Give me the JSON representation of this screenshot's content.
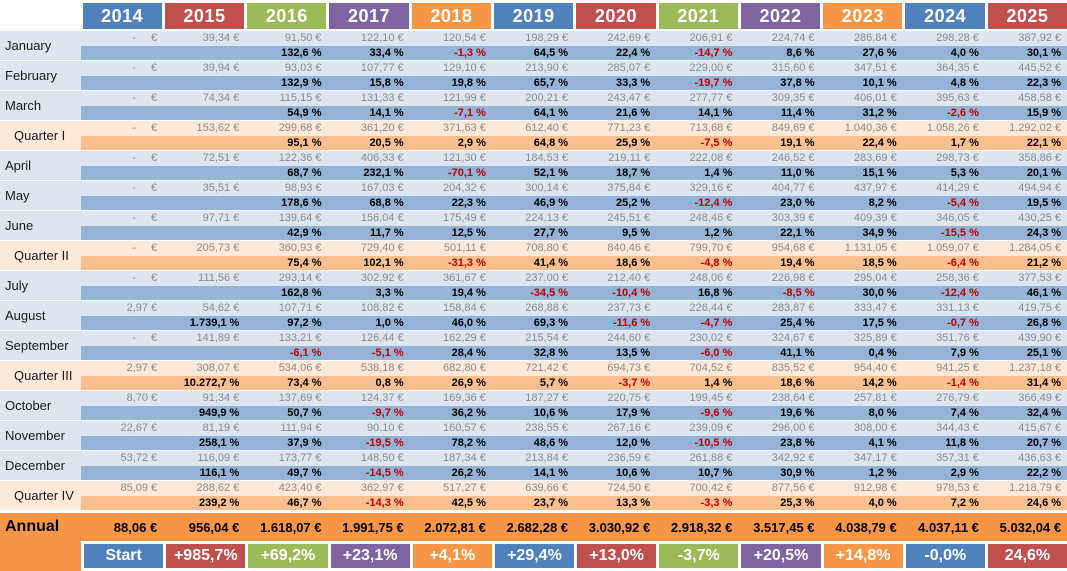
{
  "styles": {
    "month_value_bg": "#DCE6F1",
    "month_pct_bg": "#95B3D7",
    "quarter_value_bg": "#FDE9D9",
    "quarter_pct_bg": "#FABF8F",
    "annual_bg": "#F79646",
    "negative_text": "#C00000",
    "value_text": "#8a8a8a",
    "year_blue": "#4F81BD",
    "year_red": "#C0504D",
    "year_green": "#9BBB59",
    "year_purple": "#8064A2",
    "year_orange": "#F79646"
  },
  "chart_data": {
    "type": "table",
    "title": "",
    "columns": [
      "2014",
      "2015",
      "2016",
      "2017",
      "2018",
      "2019",
      "2020",
      "2021",
      "2022",
      "2023",
      "2024",
      "2025"
    ],
    "column_colors": [
      "#4F81BD",
      "#C0504D",
      "#9BBB59",
      "#8064A2",
      "#F79646",
      "#4F81BD",
      "#C0504D",
      "#9BBB59",
      "#8064A2",
      "#F79646",
      "#4F81BD",
      "#C0504D"
    ],
    "rows": [
      {
        "label": "January",
        "type": "month",
        "values": [
          "- €",
          "39,34 €",
          "91,50 €",
          "122,10 €",
          "120,54 €",
          "198,29 €",
          "242,69 €",
          "206,91 €",
          "224,74 €",
          "286,84 €",
          "298,28 €",
          "387,92 €"
        ],
        "pcts": [
          "",
          "",
          "132,6 %",
          "33,4 %",
          "-1,3 %",
          "64,5 %",
          "22,4 %",
          "-14,7 %",
          "8,6 %",
          "27,6 %",
          "4,0 %",
          "30,1 %"
        ]
      },
      {
        "label": "February",
        "type": "month",
        "values": [
          "- €",
          "39,94 €",
          "93,03 €",
          "107,77 €",
          "129,10 €",
          "213,90 €",
          "285,07 €",
          "229,00 €",
          "315,60 €",
          "347,51 €",
          "364,35 €",
          "445,52 €"
        ],
        "pcts": [
          "",
          "",
          "132,9 %",
          "15,8 %",
          "19,8 %",
          "65,7 %",
          "33,3 %",
          "-19,7 %",
          "37,8 %",
          "10,1 %",
          "4,8 %",
          "22,3 %"
        ]
      },
      {
        "label": "March",
        "type": "month",
        "values": [
          "- €",
          "74,34 €",
          "115,15 €",
          "131,33 €",
          "121,99 €",
          "200,21 €",
          "243,47 €",
          "277,77 €",
          "309,35 €",
          "406,01 €",
          "395,63 €",
          "458,58 €"
        ],
        "pcts": [
          "",
          "",
          "54,9 %",
          "14,1 %",
          "-7,1 %",
          "64,1 %",
          "21,6 %",
          "14,1 %",
          "11,4 %",
          "31,2 %",
          "-2,6 %",
          "15,9 %"
        ]
      },
      {
        "label": "Quarter I",
        "type": "quarter",
        "values": [
          "- €",
          "153,62 €",
          "299,68 €",
          "361,20 €",
          "371,63 €",
          "612,40 €",
          "771,23 €",
          "713,68 €",
          "849,69 €",
          "1.040,36 €",
          "1.058,26 €",
          "1.292,02 €"
        ],
        "pcts": [
          "",
          "",
          "95,1 %",
          "20,5 %",
          "2,9 %",
          "64,8 %",
          "25,9 %",
          "-7,5 %",
          "19,1 %",
          "22,4 %",
          "1,7 %",
          "22,1 %"
        ]
      },
      {
        "label": "April",
        "type": "month",
        "values": [
          "- €",
          "72,51 €",
          "122,36 €",
          "406,33 €",
          "121,30 €",
          "184,53 €",
          "219,11 €",
          "222,08 €",
          "246,52 €",
          "283,69 €",
          "298,73 €",
          "358,86 €"
        ],
        "pcts": [
          "",
          "",
          "68,7 %",
          "232,1 %",
          "-70,1 %",
          "52,1 %",
          "18,7 %",
          "1,4 %",
          "11,0 %",
          "15,1 %",
          "5,3 %",
          "20,1 %"
        ]
      },
      {
        "label": "May",
        "type": "month",
        "values": [
          "- €",
          "35,51 €",
          "98,93 €",
          "167,03 €",
          "204,32 €",
          "300,14 €",
          "375,84 €",
          "329,16 €",
          "404,77 €",
          "437,97 €",
          "414,29 €",
          "494,94 €"
        ],
        "pcts": [
          "",
          "",
          "178,6 %",
          "68,8 %",
          "22,3 %",
          "46,9 %",
          "25,2 %",
          "-12,4 %",
          "23,0 %",
          "8,2 %",
          "-5,4 %",
          "19,5 %"
        ]
      },
      {
        "label": "June",
        "type": "month",
        "values": [
          "- €",
          "97,71 €",
          "139,64 €",
          "156,04 €",
          "175,49 €",
          "224,13 €",
          "245,51 €",
          "248,46 €",
          "303,39 €",
          "409,39 €",
          "346,05 €",
          "430,25 €"
        ],
        "pcts": [
          "",
          "",
          "42,9 %",
          "11,7 %",
          "12,5 %",
          "27,7 %",
          "9,5 %",
          "1,2 %",
          "22,1 %",
          "34,9 %",
          "-15,5 %",
          "24,3 %"
        ]
      },
      {
        "label": "Quarter II",
        "type": "quarter",
        "values": [
          "- €",
          "205,73 €",
          "360,93 €",
          "729,40 €",
          "501,11 €",
          "708,80 €",
          "840,46 €",
          "799,70 €",
          "954,68 €",
          "1.131,05 €",
          "1.059,07 €",
          "1.284,05 €"
        ],
        "pcts": [
          "",
          "",
          "75,4 %",
          "102,1 %",
          "-31,3 %",
          "41,4 %",
          "18,6 %",
          "-4,8 %",
          "19,4 %",
          "18,5 %",
          "-6,4 %",
          "21,2 %"
        ]
      },
      {
        "label": "July",
        "type": "month",
        "values": [
          "- €",
          "111,56 €",
          "293,14 €",
          "302,92 €",
          "361,67 €",
          "237,00 €",
          "212,40 €",
          "248,06 €",
          "226,98 €",
          "295,04 €",
          "258,36 €",
          "377,53 €"
        ],
        "pcts": [
          "",
          "",
          "162,8 %",
          "3,3 %",
          "19,4 %",
          "-34,5 %",
          "-10,4 %",
          "16,8 %",
          "-8,5 %",
          "30,0 %",
          "-12,4 %",
          "46,1 %"
        ]
      },
      {
        "label": "August",
        "type": "month",
        "values": [
          "2,97 €",
          "54,62 €",
          "107,71 €",
          "108,82 €",
          "158,84 €",
          "268,88 €",
          "237,73 €",
          "226,44 €",
          "283,87 €",
          "333,47 €",
          "331,13 €",
          "419,75 €"
        ],
        "pcts": [
          "",
          "1.739,1 %",
          "97,2 %",
          "1,0 %",
          "46,0 %",
          "69,3 %",
          "-11,6 %",
          "-4,7 %",
          "25,4 %",
          "17,5 %",
          "-0,7 %",
          "26,8 %"
        ]
      },
      {
        "label": "September",
        "type": "month",
        "values": [
          "- €",
          "141,89 €",
          "133,21 €",
          "126,44 €",
          "162,29 €",
          "215,54 €",
          "244,60 €",
          "230,02 €",
          "324,67 €",
          "325,89 €",
          "351,76 €",
          "439,90 €"
        ],
        "pcts": [
          "",
          "",
          "-6,1 %",
          "-5,1 %",
          "28,4 %",
          "32,8 %",
          "13,5 %",
          "-6,0 %",
          "41,1 %",
          "0,4 %",
          "7,9 %",
          "25,1 %"
        ]
      },
      {
        "label": "Quarter III",
        "type": "quarter",
        "values": [
          "2,97 €",
          "308,07 €",
          "534,06 €",
          "538,18 €",
          "682,80 €",
          "721,42 €",
          "694,73 €",
          "704,52 €",
          "835,52 €",
          "954,40 €",
          "941,25 €",
          "1.237,18 €"
        ],
        "pcts": [
          "",
          "10.272,7 %",
          "73,4 %",
          "0,8 %",
          "26,9 %",
          "5,7 %",
          "-3,7 %",
          "1,4 %",
          "18,6 %",
          "14,2 %",
          "-1,4 %",
          "31,4 %"
        ]
      },
      {
        "label": "October",
        "type": "month",
        "values": [
          "8,70 €",
          "91,34 €",
          "137,69 €",
          "124,37 €",
          "169,36 €",
          "187,27 €",
          "220,75 €",
          "199,45 €",
          "238,64 €",
          "257,81 €",
          "276,79 €",
          "366,49 €"
        ],
        "pcts": [
          "",
          "949,9 %",
          "50,7 %",
          "-9,7 %",
          "36,2 %",
          "10,6 %",
          "17,9 %",
          "-9,6 %",
          "19,6 %",
          "8,0 %",
          "7,4 %",
          "32,4 %"
        ]
      },
      {
        "label": "November",
        "type": "month",
        "values": [
          "22,67 €",
          "81,19 €",
          "111,94 €",
          "90,10 €",
          "160,57 €",
          "238,55 €",
          "267,16 €",
          "239,09 €",
          "296,00 €",
          "308,00 €",
          "344,43 €",
          "415,67 €"
        ],
        "pcts": [
          "",
          "258,1 %",
          "37,9 %",
          "-19,5 %",
          "78,2 %",
          "48,6 %",
          "12,0 %",
          "-10,5 %",
          "23,8 %",
          "4,1 %",
          "11,8 %",
          "20,7 %"
        ]
      },
      {
        "label": "December",
        "type": "month",
        "values": [
          "53,72 €",
          "116,09 €",
          "173,77 €",
          "148,50 €",
          "187,34 €",
          "213,84 €",
          "236,59 €",
          "261,88 €",
          "342,92 €",
          "347,17 €",
          "357,31 €",
          "436,63 €"
        ],
        "pcts": [
          "",
          "116,1 %",
          "49,7 %",
          "-14,5 %",
          "26,2 %",
          "14,1 %",
          "10,6 %",
          "10,7 %",
          "30,9 %",
          "1,2 %",
          "2,9 %",
          "22,2 %"
        ]
      },
      {
        "label": "Quarter IV",
        "type": "quarter",
        "values": [
          "85,09 €",
          "288,62 €",
          "423,40 €",
          "362,97 €",
          "517,27 €",
          "639,66 €",
          "724,50 €",
          "700,42 €",
          "877,56 €",
          "912,98 €",
          "978,53 €",
          "1.218,79 €"
        ],
        "pcts": [
          "",
          "239,2 %",
          "46,7 %",
          "-14,3 %",
          "42,5 %",
          "23,7 %",
          "13,3 %",
          "-3,3 %",
          "25,3 %",
          "4,0 %",
          "7,2 %",
          "24,6 %"
        ]
      }
    ],
    "annual": {
      "label": "Annual",
      "values": [
        "88,06 €",
        "956,04 €",
        "1.618,07 €",
        "1.991,75 €",
        "2.072,81 €",
        "2.682,28 €",
        "3.030,92 €",
        "2.918,32 €",
        "3.517,45 €",
        "4.038,79 €",
        "4.037,11 €",
        "5.032,04 €"
      ]
    },
    "growth_row": [
      "Start",
      "+985,7%",
      "+69,2%",
      "+23,1%",
      "+4,1%",
      "+29,4%",
      "+13,0%",
      "-3,7%",
      "+20,5%",
      "+14,8%",
      "-0,0%",
      "24,6%"
    ]
  }
}
